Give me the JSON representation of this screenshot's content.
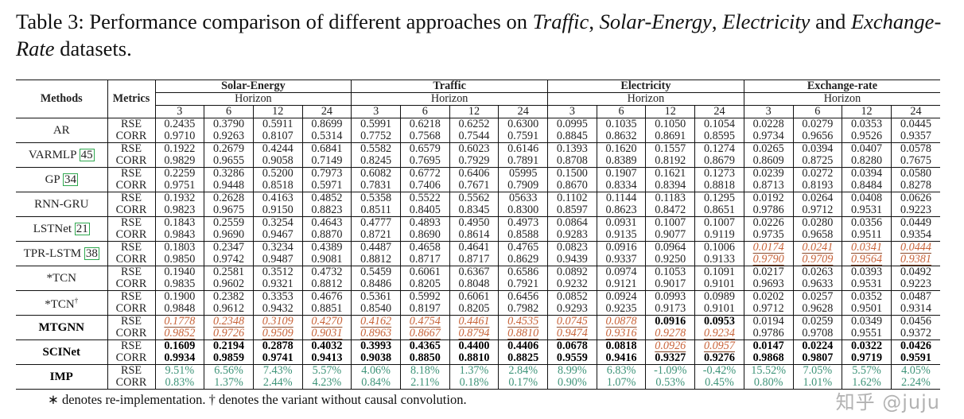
{
  "caption": {
    "prefix": "Table 3: Performance comparison of different approaches on ",
    "d1": "Traffic",
    "sep1": ", ",
    "d2": "Solar-Energy",
    "sep2": ", ",
    "d3": "Electricity",
    "sep3": " and ",
    "d4": "Exchange-Rate",
    "suffix": " datasets."
  },
  "header": {
    "methods": "Methods",
    "metrics": "Metrics",
    "horizon": "Horizon",
    "datasets": [
      "Solar-Energy",
      "Traffic",
      "Electricity",
      "Exchange-rate"
    ],
    "horizons": [
      "3",
      "6",
      "12",
      "24"
    ]
  },
  "colors": {
    "second_best": "#c8643a",
    "improvement": "#3e9479",
    "citation_box": "#2fa84f"
  },
  "rows": [
    {
      "method": "AR",
      "cite": "",
      "metrics": [
        "RSE",
        "CORR"
      ],
      "rse": [
        "0.2435",
        "0.3790",
        "0.5911",
        "0.8699",
        "0.5991",
        "0.6218",
        "0.6252",
        "0.6300",
        "0.0995",
        "0.1035",
        "0.1050",
        "0.1054",
        "0.0228",
        "0.0279",
        "0.0353",
        "0.0445"
      ],
      "corr": [
        "0.9710",
        "0.9263",
        "0.8107",
        "0.5314",
        "0.7752",
        "0.7568",
        "0.7544",
        "0.7591",
        "0.8845",
        "0.8632",
        "0.8691",
        "0.8595",
        "0.9734",
        "0.9656",
        "0.9526",
        "0.9357"
      ]
    },
    {
      "method": "VARMLP",
      "cite": "45",
      "metrics": [
        "RSE",
        "CORR"
      ],
      "rse": [
        "0.1922",
        "0.2679",
        "0.4244",
        "0.6841",
        "0.5582",
        "0.6579",
        "0.6023",
        "0.6146",
        "0.1393",
        "0.1620",
        "0.1557",
        "0.1274",
        "0.0265",
        "0.0394",
        "0.0407",
        "0.0578"
      ],
      "corr": [
        "0.9829",
        "0.9655",
        "0.9058",
        "0.7149",
        "0.8245",
        "0.7695",
        "0.7929",
        "0.7891",
        "0.8708",
        "0.8389",
        "0.8192",
        "0.8679",
        "0.8609",
        "0.8725",
        "0.8280",
        "0.7675"
      ]
    },
    {
      "method": "GP",
      "cite": "34",
      "metrics": [
        "RSE",
        "CORR"
      ],
      "rse": [
        "0.2259",
        "0.3286",
        "0.5200",
        "0.7973",
        "0.6082",
        "0.6772",
        "0.6406",
        "05995",
        "0.1500",
        "0.1907",
        "0.1621",
        "0.1273",
        "0.0239",
        "0.0272",
        "0.0394",
        "0.0580"
      ],
      "corr": [
        "0.9751",
        "0.9448",
        "0.8518",
        "0.5971",
        "0.7831",
        "0.7406",
        "0.7671",
        "0.7909",
        "0.8670",
        "0.8334",
        "0.8394",
        "0.8818",
        "0.8713",
        "0.8193",
        "0.8484",
        "0.8278"
      ]
    },
    {
      "method": "RNN-GRU",
      "cite": "",
      "metrics": [
        "RSE",
        "CORR"
      ],
      "rse": [
        "0.1932",
        "0.2628",
        "0.4163",
        "0.4852",
        "0.5358",
        "0.5522",
        "0.5562",
        "05633",
        "0.1102",
        "0.1144",
        "0.1183",
        "0.1295",
        "0.0192",
        "0.0264",
        "0.0408",
        "0.0626"
      ],
      "corr": [
        "0.9823",
        "0.9675",
        "0.9150",
        "0.8823",
        "0.8511",
        "0.8405",
        "0.8345",
        "0.8300",
        "0.8597",
        "0.8623",
        "0.8472",
        "0.8651",
        "0.9786",
        "0.9712",
        "0.9531",
        "0.9223"
      ]
    },
    {
      "method": "LSTNet",
      "cite": "21",
      "metrics": [
        "RSE",
        "CORR"
      ],
      "rse": [
        "0.1843",
        "0.2559",
        "0.3254",
        "0.4643",
        "0.4777",
        "0.4893",
        "0.4950",
        "0.4973",
        "0.0864",
        "0.0931",
        "0.1007",
        "0.1007",
        "0.0226",
        "0.0280",
        "0.0356",
        "0.0449"
      ],
      "corr": [
        "0.9843",
        "0.9690",
        "0.9467",
        "0.8870",
        "0.8721",
        "0.8690",
        "0.8614",
        "0.8588",
        "0.9283",
        "0.9135",
        "0.9077",
        "0.9119",
        "0.9735",
        "0.9658",
        "0.9511",
        "0.9354"
      ]
    },
    {
      "method": "TPR-LSTM",
      "cite": "38",
      "metrics": [
        "RSE",
        "CORR"
      ],
      "rse": [
        "0.1803",
        "0.2347",
        "0.3234",
        "0.4389",
        "0.4487",
        "0.4658",
        "0.4641",
        "0.4765",
        "0.0823",
        "0.0916",
        "0.0964",
        "0.1006",
        "0.0174",
        "0.0241",
        "0.0341",
        "0.0444"
      ],
      "corr": [
        "0.9850",
        "0.9742",
        "0.9487",
        "0.9081",
        "0.8812",
        "0.8717",
        "0.8717",
        "0.8629",
        "0.9439",
        "0.9337",
        "0.9250",
        "0.9133",
        "0.9790",
        "0.9709",
        "0.9564",
        "0.9381"
      ],
      "rse_style": "nnnnnnnnnnnnuuuu",
      "corr_style": "nnnnnnnnnnnnuuuu"
    },
    {
      "method": "*TCN",
      "cite": "",
      "metrics": [
        "RSE",
        "CORR"
      ],
      "rse": [
        "0.1940",
        "0.2581",
        "0.3512",
        "0.4732",
        "0.5459",
        "0.6061",
        "0.6367",
        "0.6586",
        "0.0892",
        "0.0974",
        "0.1053",
        "0.1091",
        "0.0217",
        "0.0263",
        "0.0393",
        "0.0492"
      ],
      "corr": [
        "0.9835",
        "0.9602",
        "0.9321",
        "0.8812",
        "0.8486",
        "0.8205",
        "0.8048",
        "0.7921",
        "0.9232",
        "0.9121",
        "0.9017",
        "0.9101",
        "0.9693",
        "0.9633",
        "0.9531",
        "0.9223"
      ]
    },
    {
      "method": "*TCN",
      "sup": "†",
      "cite": "",
      "metrics": [
        "RSE",
        "CORR"
      ],
      "rse": [
        "0.1900",
        "0.2382",
        "0.3353",
        "0.4676",
        "0.5361",
        "0.5992",
        "0.6061",
        "0.6456",
        "0.0852",
        "0.0924",
        "0.0993",
        "0.0989",
        "0.0202",
        "0.0257",
        "0.0352",
        "0.0487"
      ],
      "corr": [
        "0.9848",
        "0.9612",
        "0.9432",
        "0.8851",
        "0.8540",
        "0.8197",
        "0.8205",
        "0.7982",
        "0.9293",
        "0.9235",
        "0.9173",
        "0.9101",
        "0.9712",
        "0.9628",
        "0.9501",
        "0.9314"
      ]
    },
    {
      "method": "MTGNN",
      "cite": "",
      "bold_name": true,
      "metrics": [
        "RSE",
        "CORR"
      ],
      "rse": [
        "0.1778",
        "0.2348",
        "0.3109",
        "0.4270",
        "0.4162",
        "0.4754",
        "0.4461",
        "0.4535",
        "0.0745",
        "0.0878",
        "0.0916",
        "0.0953",
        "0.0194",
        "0.0259",
        "0.0349",
        "0.0456"
      ],
      "corr": [
        "0.9852",
        "0.9726",
        "0.9509",
        "0.9031",
        "0.8963",
        "0.8667",
        "0.8794",
        "0.8810",
        "0.9474",
        "0.9316",
        "0.9278",
        "0.9234",
        "0.9786",
        "0.9708",
        "0.9551",
        "0.9372"
      ],
      "rse_style": "uuuuuuuuuubbnnnn",
      "corr_style": "uuuuuuuuuuuunnnn"
    },
    {
      "method": "SCINet",
      "cite": "",
      "bold_name": true,
      "metrics": [
        "RSE",
        "CORR"
      ],
      "rse": [
        "0.1609",
        "0.2194",
        "0.2878",
        "0.4032",
        "0.3993",
        "0.4365",
        "0.4400",
        "0.4406",
        "0.0678",
        "0.0818",
        "0.0926",
        "0.0957",
        "0.0147",
        "0.0224",
        "0.0322",
        "0.0426"
      ],
      "corr": [
        "0.9934",
        "0.9859",
        "0.9741",
        "0.9413",
        "0.9038",
        "0.8850",
        "0.8810",
        "0.8825",
        "0.9559",
        "0.9416",
        "0.9327",
        "0.9276",
        "0.9868",
        "0.9807",
        "0.9719",
        "0.9591"
      ],
      "rse_style": "bbbbbbbbbbuubbbb",
      "corr_style": "bbbbbbbbbbbbbbbb"
    },
    {
      "method": "IMP",
      "cite": "",
      "bold_name": true,
      "metrics": [
        "RSE",
        "CORR"
      ],
      "rse": [
        "9.51%",
        "6.56%",
        "7.43%",
        "5.57%",
        "4.06%",
        "8.18%",
        "1.37%",
        "2.84%",
        "8.99%",
        "6.83%",
        "-1.09%",
        "-0.42%",
        "15.52%",
        "7.05%",
        "5.57%",
        "4.05%"
      ],
      "corr": [
        "0.83%",
        "1.37%",
        "2.44%",
        "4.23%",
        "0.84%",
        "2.11%",
        "0.18%",
        "0.17%",
        "0.90%",
        "1.07%",
        "0.53%",
        "0.45%",
        "0.80%",
        "1.01%",
        "1.62%",
        "2.24%"
      ],
      "rse_style": "gggggggggggggggg",
      "corr_style": "gggggggggggggggg"
    }
  ],
  "footnote": "∗ denotes re-implementation. † denotes the variant without causal convolution.",
  "watermark": "知乎 @juju"
}
